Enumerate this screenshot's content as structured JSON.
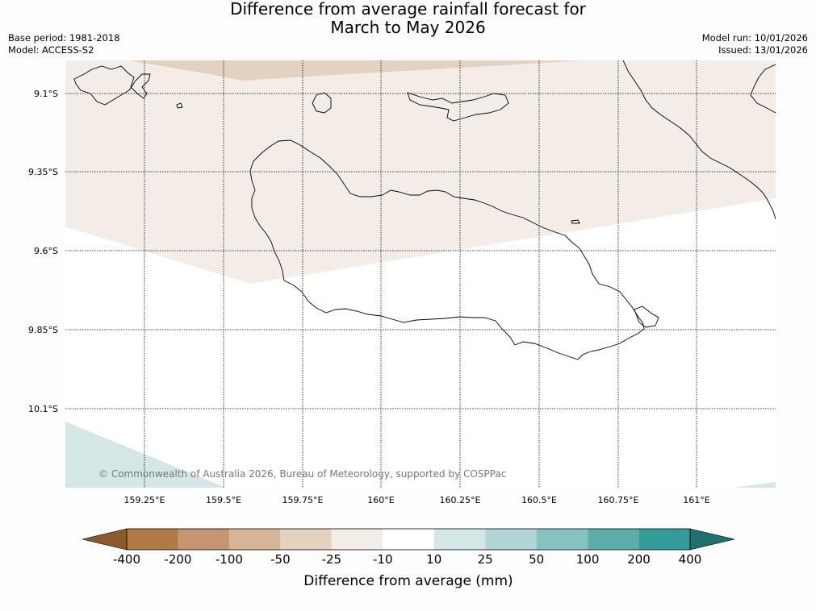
{
  "title": {
    "line1": "Difference from average rainfall forecast for",
    "line2": "March to May 2026"
  },
  "meta": {
    "base_period": "Base period: 1981-2018",
    "model": "Model: ACCESS-S2",
    "model_run": "Model run: 10/01/2026",
    "issued": "Issued: 13/01/2026"
  },
  "map": {
    "latitude_labels": [
      "9.1°S",
      "9.35°S",
      "9.6°S",
      "9.85°S",
      "10.1°S"
    ],
    "longitude_labels": [
      "159.25°E",
      "159.5°E",
      "159.75°E",
      "160°E",
      "160.25°E",
      "160.5°E",
      "160.75°E",
      "161°E"
    ],
    "copyright": "© Commonwealth of Australia 2026, Bureau of Meteorology, supported by COSPPac"
  },
  "colorbar": {
    "title": "Difference from average (mm)",
    "tick_labels": [
      "-400",
      "-200",
      "-100",
      "-50",
      "-25",
      "-10",
      "10",
      "25",
      "50",
      "100",
      "200",
      "400"
    ],
    "colors": {
      "under": "#8c5a2b",
      "bins": [
        "#b07a42",
        "#c39570",
        "#d6b596",
        "#e4d2c1",
        "#f4ece7",
        "#ffffff",
        "#d4e7e6",
        "#b0d6d6",
        "#85c3c1",
        "#5baeab",
        "#339c98"
      ],
      "over": "#1f716e"
    }
  },
  "fills": {
    "upper_region": "#f4ece7",
    "top_band": "#e4d2c1",
    "lower_left_patch": "#d4e7e6",
    "lower_right_patch": "#d4e7e6"
  }
}
